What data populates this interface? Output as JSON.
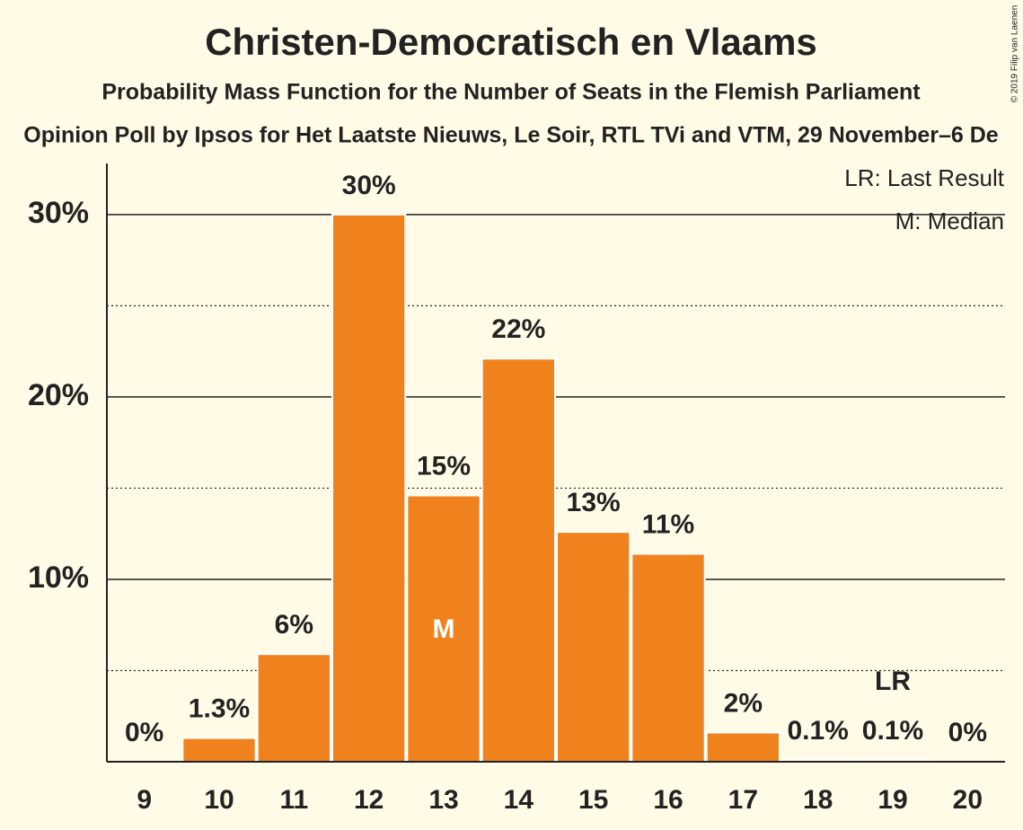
{
  "chart_data": {
    "type": "bar",
    "title": "Christen-Democratisch en Vlaams",
    "subtitle": "Probability Mass Function for the Number of Seats in the Flemish Parliament",
    "subtitle2": "Opinion Poll by Ipsos for Het Laatste Nieuws, Le Soir, RTL TVi and VTM, 29 November–6 De",
    "copyright": "© 2019 Filip van Laenen",
    "categories": [
      "9",
      "10",
      "11",
      "12",
      "13",
      "14",
      "15",
      "16",
      "17",
      "18",
      "19",
      "20"
    ],
    "values": [
      0,
      1.3,
      5.9,
      30,
      14.6,
      22.1,
      12.6,
      11.4,
      1.6,
      0.1,
      0.1,
      0
    ],
    "value_labels": [
      "0%",
      "1.3%",
      "6%",
      "30%",
      "15%",
      "22%",
      "13%",
      "11%",
      "2%",
      "0.1%",
      "0.1%",
      "0%"
    ],
    "color": "#f0821e",
    "ylim": [
      0,
      32.8
    ],
    "yticks": [
      {
        "value": 10,
        "label": "10%"
      },
      {
        "value": 20,
        "label": "20%"
      },
      {
        "value": 30,
        "label": "30%"
      }
    ],
    "minor_yticks": [
      5,
      15,
      25
    ],
    "grid": true,
    "median": "13",
    "median_label": "M",
    "last_result": "19",
    "last_result_label": "LR",
    "legend": [
      "LR: Last Result",
      "M: Median"
    ]
  }
}
